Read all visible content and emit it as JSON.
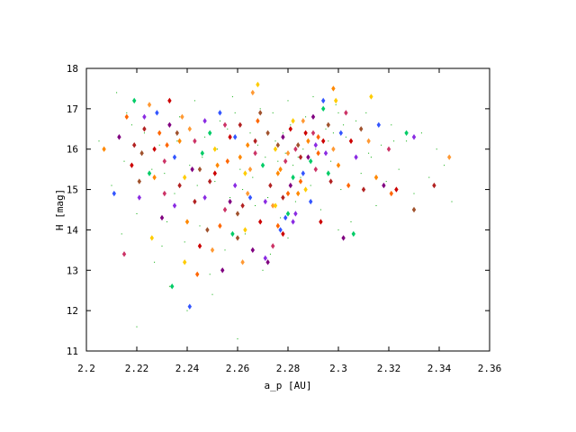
{
  "chart_data": {
    "type": "scatter",
    "title": "",
    "xlabel": "a_p [AU]",
    "ylabel": "H [mag]",
    "xlim": [
      2.2,
      2.36
    ],
    "ylim": [
      11,
      18
    ],
    "xticks": [
      "2.2",
      "2.22",
      "2.24",
      "2.26",
      "2.28",
      "2.3",
      "2.32",
      "2.34",
      "2.36"
    ],
    "yticks": [
      "11",
      "12",
      "13",
      "14",
      "15",
      "16",
      "17",
      "18"
    ],
    "grid": false,
    "legend": "none",
    "colors": {
      "background": "#00aa00",
      "palette": [
        "#cc0000",
        "#ff8800",
        "#8a2be2",
        "#800080",
        "#b22222",
        "#ff6600",
        "#ffcc00",
        "#00cc66",
        "#3355ff",
        "#a0522d",
        "#cc3366",
        "#ff9933"
      ]
    },
    "series": [
      {
        "marker": "tiny-dot",
        "color": "#00aa00",
        "points": [
          [
            2.205,
            16.2
          ],
          [
            2.21,
            15.1
          ],
          [
            2.212,
            17.4
          ],
          [
            2.214,
            13.9
          ],
          [
            2.218,
            16.6
          ],
          [
            2.22,
            14.4
          ],
          [
            2.222,
            15.9
          ],
          [
            2.225,
            17.1
          ],
          [
            2.227,
            13.2
          ],
          [
            2.229,
            16.1
          ],
          [
            2.231,
            15.4
          ],
          [
            2.233,
            12.6
          ],
          [
            2.235,
            14.9
          ],
          [
            2.237,
            16.8
          ],
          [
            2.239,
            13.7
          ],
          [
            2.241,
            15.6
          ],
          [
            2.243,
            17.2
          ],
          [
            2.245,
            14.1
          ],
          [
            2.247,
            16.3
          ],
          [
            2.249,
            12.9
          ],
          [
            2.251,
            15.2
          ],
          [
            2.253,
            16.7
          ],
          [
            2.255,
            13.5
          ],
          [
            2.257,
            14.8
          ],
          [
            2.259,
            16.9
          ],
          [
            2.261,
            15.5
          ],
          [
            2.263,
            13.9
          ],
          [
            2.265,
            16.4
          ],
          [
            2.267,
            14.6
          ],
          [
            2.269,
            17.0
          ],
          [
            2.271,
            15.8
          ],
          [
            2.273,
            13.4
          ],
          [
            2.275,
            16.2
          ],
          [
            2.277,
            14.3
          ],
          [
            2.279,
            15.9
          ],
          [
            2.281,
            16.6
          ],
          [
            2.283,
            14.7
          ],
          [
            2.285,
            15.3
          ],
          [
            2.287,
            16.8
          ],
          [
            2.289,
            15.1
          ],
          [
            2.291,
            16.0
          ],
          [
            2.293,
            14.5
          ],
          [
            2.295,
            16.5
          ],
          [
            2.297,
            15.7
          ],
          [
            2.299,
            17.1
          ],
          [
            2.301,
            15.0
          ],
          [
            2.303,
            16.3
          ],
          [
            2.305,
            14.2
          ],
          [
            2.307,
            16.7
          ],
          [
            2.309,
            15.4
          ],
          [
            2.311,
            16.9
          ],
          [
            2.313,
            15.8
          ],
          [
            2.315,
            14.6
          ],
          [
            2.317,
            16.1
          ],
          [
            2.319,
            15.2
          ],
          [
            2.321,
            16.6
          ],
          [
            2.324,
            15.5
          ],
          [
            2.327,
            16.2
          ],
          [
            2.33,
            14.9
          ],
          [
            2.333,
            16.4
          ],
          [
            2.336,
            15.3
          ],
          [
            2.339,
            16.0
          ],
          [
            2.342,
            15.6
          ],
          [
            2.345,
            14.7
          ],
          [
            2.215,
            15.7
          ],
          [
            2.223,
            16.4
          ],
          [
            2.232,
            14.2
          ],
          [
            2.244,
            15.1
          ],
          [
            2.252,
            16.0
          ],
          [
            2.262,
            15.0
          ],
          [
            2.272,
            14.8
          ],
          [
            2.282,
            15.6
          ],
          [
            2.292,
            15.9
          ],
          [
            2.302,
            16.6
          ],
          [
            2.312,
            15.9
          ],
          [
            2.322,
            16.2
          ],
          [
            2.268,
            16.1
          ],
          [
            2.278,
            16.4
          ],
          [
            2.288,
            16.2
          ],
          [
            2.298,
            16.4
          ],
          [
            2.284,
            15.8
          ],
          [
            2.286,
            16.0
          ],
          [
            2.276,
            15.7
          ],
          [
            2.274,
            16.9
          ],
          [
            2.294,
            17.0
          ],
          [
            2.296,
            16.2
          ],
          [
            2.266,
            15.3
          ],
          [
            2.256,
            16.5
          ],
          [
            2.246,
            15.8
          ],
          [
            2.236,
            16.2
          ],
          [
            2.226,
            15.5
          ],
          [
            2.216,
            16.9
          ],
          [
            2.258,
            17.3
          ],
          [
            2.28,
            17.2
          ],
          [
            2.29,
            17.3
          ],
          [
            2.3,
            16.9
          ],
          [
            2.27,
            13.0
          ],
          [
            2.25,
            12.4
          ],
          [
            2.24,
            12.0
          ],
          [
            2.23,
            13.6
          ],
          [
            2.26,
            11.3
          ],
          [
            2.22,
            11.6
          ],
          [
            2.28,
            13.8
          ],
          [
            2.3,
            14.0
          ]
        ]
      },
      {
        "marker": "diamond",
        "points": [
          [
            2.207,
            16.0
          ],
          [
            2.211,
            14.9
          ],
          [
            2.213,
            16.3
          ],
          [
            2.215,
            13.4
          ],
          [
            2.216,
            16.8
          ],
          [
            2.218,
            15.6
          ],
          [
            2.219,
            17.2
          ],
          [
            2.221,
            14.8
          ],
          [
            2.222,
            15.9
          ],
          [
            2.223,
            16.5
          ],
          [
            2.225,
            17.1
          ],
          [
            2.226,
            13.8
          ],
          [
            2.227,
            15.3
          ],
          [
            2.228,
            16.9
          ],
          [
            2.23,
            14.3
          ],
          [
            2.231,
            15.7
          ],
          [
            2.232,
            16.1
          ],
          [
            2.233,
            17.2
          ],
          [
            2.234,
            12.6
          ],
          [
            2.235,
            14.6
          ],
          [
            2.236,
            16.4
          ],
          [
            2.237,
            15.1
          ],
          [
            2.238,
            16.8
          ],
          [
            2.239,
            13.2
          ],
          [
            2.24,
            14.2
          ],
          [
            2.241,
            12.1
          ],
          [
            2.242,
            15.5
          ],
          [
            2.243,
            16.2
          ],
          [
            2.244,
            12.9
          ],
          [
            2.245,
            13.6
          ],
          [
            2.246,
            15.9
          ],
          [
            2.247,
            16.7
          ],
          [
            2.248,
            14.0
          ],
          [
            2.249,
            15.2
          ],
          [
            2.25,
            13.5
          ],
          [
            2.251,
            16.0
          ],
          [
            2.252,
            15.6
          ],
          [
            2.253,
            16.9
          ],
          [
            2.254,
            13.0
          ],
          [
            2.255,
            14.5
          ],
          [
            2.256,
            15.7
          ],
          [
            2.257,
            16.3
          ],
          [
            2.258,
            13.9
          ],
          [
            2.259,
            15.1
          ],
          [
            2.26,
            14.4
          ],
          [
            2.261,
            16.6
          ],
          [
            2.262,
            13.2
          ],
          [
            2.263,
            15.4
          ],
          [
            2.264,
            16.1
          ],
          [
            2.265,
            14.8
          ],
          [
            2.266,
            13.5
          ],
          [
            2.267,
            15.9
          ],
          [
            2.268,
            16.7
          ],
          [
            2.269,
            14.2
          ],
          [
            2.27,
            15.6
          ],
          [
            2.271,
            13.3
          ],
          [
            2.272,
            16.4
          ],
          [
            2.273,
            15.1
          ],
          [
            2.274,
            14.6
          ],
          [
            2.275,
            16.0
          ],
          [
            2.276,
            15.4
          ],
          [
            2.277,
            14.0
          ],
          [
            2.278,
            16.3
          ],
          [
            2.279,
            15.7
          ],
          [
            2.28,
            14.9
          ],
          [
            2.281,
            16.5
          ],
          [
            2.282,
            15.3
          ],
          [
            2.283,
            14.4
          ],
          [
            2.284,
            16.1
          ],
          [
            2.285,
            15.8
          ],
          [
            2.286,
            16.7
          ],
          [
            2.287,
            15.0
          ],
          [
            2.288,
            16.2
          ],
          [
            2.289,
            14.7
          ],
          [
            2.29,
            16.8
          ],
          [
            2.291,
            15.5
          ],
          [
            2.292,
            16.3
          ],
          [
            2.293,
            14.2
          ],
          [
            2.294,
            17.0
          ],
          [
            2.295,
            15.9
          ],
          [
            2.296,
            16.6
          ],
          [
            2.297,
            15.2
          ],
          [
            2.298,
            16.0
          ],
          [
            2.299,
            17.2
          ],
          [
            2.3,
            15.6
          ],
          [
            2.301,
            16.4
          ],
          [
            2.302,
            13.8
          ],
          [
            2.303,
            16.9
          ],
          [
            2.304,
            15.1
          ],
          [
            2.305,
            16.2
          ],
          [
            2.306,
            13.9
          ],
          [
            2.307,
            15.8
          ],
          [
            2.309,
            16.5
          ],
          [
            2.31,
            15.0
          ],
          [
            2.312,
            16.2
          ],
          [
            2.313,
            17.3
          ],
          [
            2.315,
            15.3
          ],
          [
            2.316,
            16.6
          ],
          [
            2.318,
            15.1
          ],
          [
            2.32,
            16.0
          ],
          [
            2.321,
            14.9
          ],
          [
            2.323,
            15.0
          ],
          [
            2.327,
            16.4
          ],
          [
            2.33,
            16.3
          ],
          [
            2.33,
            14.5
          ],
          [
            2.338,
            15.1
          ],
          [
            2.344,
            15.8
          ],
          [
            2.275,
            14.6
          ],
          [
            2.277,
            15.5
          ],
          [
            2.279,
            14.3
          ],
          [
            2.281,
            15.1
          ],
          [
            2.283,
            16.0
          ],
          [
            2.285,
            15.2
          ],
          [
            2.287,
            16.4
          ],
          [
            2.289,
            15.7
          ],
          [
            2.291,
            16.1
          ],
          [
            2.276,
            16.1
          ],
          [
            2.278,
            14.8
          ],
          [
            2.28,
            15.9
          ],
          [
            2.282,
            16.7
          ],
          [
            2.284,
            14.9
          ],
          [
            2.286,
            15.4
          ],
          [
            2.288,
            15.8
          ],
          [
            2.29,
            16.4
          ],
          [
            2.292,
            15.9
          ],
          [
            2.294,
            16.2
          ],
          [
            2.296,
            15.4
          ],
          [
            2.271,
            14.7
          ],
          [
            2.269,
            16.9
          ],
          [
            2.267,
            16.2
          ],
          [
            2.265,
            15.5
          ],
          [
            2.263,
            14.0
          ],
          [
            2.261,
            15.8
          ],
          [
            2.259,
            16.3
          ],
          [
            2.257,
            14.7
          ],
          [
            2.255,
            16.6
          ],
          [
            2.253,
            14.1
          ],
          [
            2.251,
            15.4
          ],
          [
            2.249,
            16.4
          ],
          [
            2.247,
            14.8
          ],
          [
            2.245,
            15.5
          ],
          [
            2.243,
            14.7
          ],
          [
            2.241,
            16.5
          ],
          [
            2.239,
            15.3
          ],
          [
            2.237,
            16.2
          ],
          [
            2.235,
            15.8
          ],
          [
            2.233,
            16.6
          ],
          [
            2.231,
            14.9
          ],
          [
            2.229,
            16.4
          ],
          [
            2.227,
            16.0
          ],
          [
            2.225,
            15.4
          ],
          [
            2.223,
            16.8
          ],
          [
            2.221,
            15.2
          ],
          [
            2.219,
            16.1
          ],
          [
            2.266,
            17.4
          ],
          [
            2.268,
            17.6
          ],
          [
            2.298,
            17.5
          ],
          [
            2.294,
            17.2
          ],
          [
            2.272,
            13.2
          ],
          [
            2.274,
            13.6
          ],
          [
            2.276,
            14.1
          ],
          [
            2.278,
            13.9
          ],
          [
            2.28,
            14.4
          ],
          [
            2.282,
            14.2
          ],
          [
            2.26,
            13.8
          ],
          [
            2.262,
            14.6
          ],
          [
            2.264,
            14.9
          ]
        ]
      }
    ]
  }
}
